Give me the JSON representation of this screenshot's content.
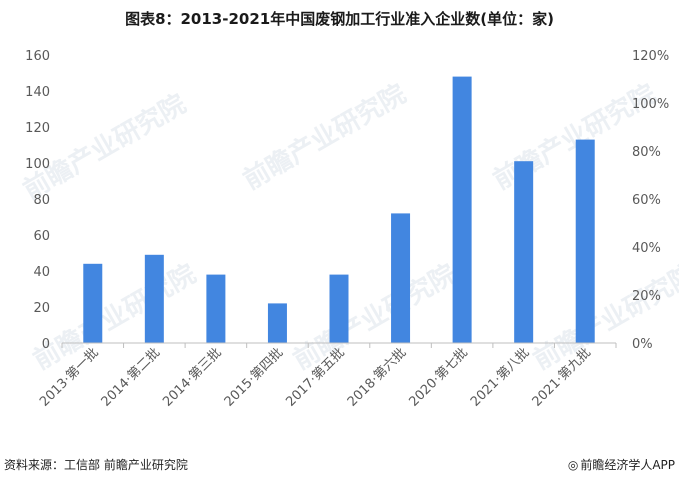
{
  "title": "图表8：2013-2021年中国废钢加工行业准入企业数(单位：家)",
  "source": "资料来源：工信部 前瞻产业研究院",
  "brand": "前瞻经济学人APP",
  "watermark": "前瞻产业研究院",
  "colors": {
    "bar": "#4286e0",
    "axis": "#bfbfbf",
    "text": "#595959"
  },
  "chart_data": {
    "type": "bar",
    "categories": [
      "2013·第一批",
      "2014·第二批",
      "2014·第三批",
      "2015·第四批",
      "2017·第五批",
      "2018·第六批",
      "2020·第七批",
      "2021·第八批",
      "2021·第九批"
    ],
    "values": [
      44,
      49,
      38,
      22,
      38,
      72,
      148,
      101,
      113
    ],
    "ylim": [
      0,
      160
    ],
    "yticks": [
      "0",
      "20",
      "40",
      "60",
      "80",
      "100",
      "120",
      "140",
      "160"
    ],
    "y2lim": [
      0,
      1.2
    ],
    "y2ticks": [
      "0%",
      "20%",
      "40%",
      "60%",
      "80%",
      "100%",
      "120%"
    ],
    "grid": false
  }
}
